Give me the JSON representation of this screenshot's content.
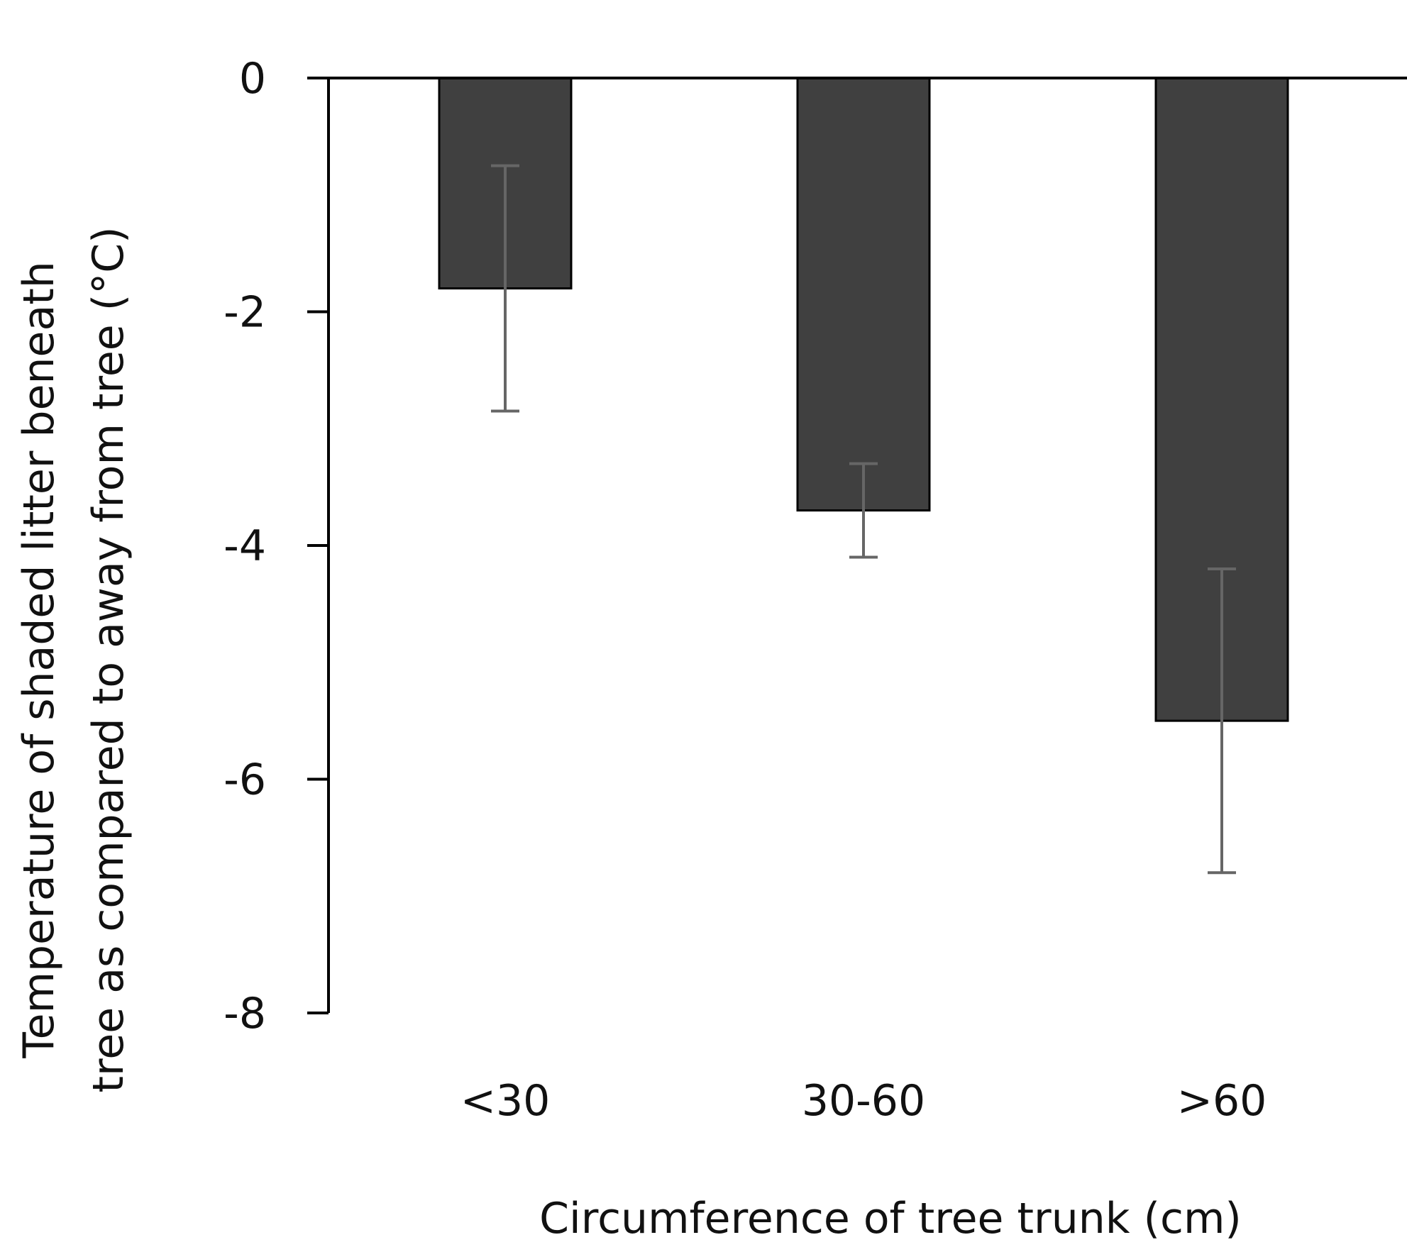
{
  "chart_data": {
    "type": "bar",
    "title": "",
    "categories": [
      "<30",
      "30-60",
      ">60"
    ],
    "values": [
      -1.8,
      -3.7,
      -5.5
    ],
    "error": [
      1.05,
      0.4,
      1.3
    ],
    "xlabel": "Circumference of tree trunk (cm)",
    "ylabel_lines": [
      "Temperature of shaded litter beneath",
      "tree as compared to away from tree (°C)"
    ],
    "ylim": [
      -8,
      0
    ],
    "yticks": [
      0,
      -2,
      -4,
      -6,
      -8
    ],
    "ytick_labels": [
      "0",
      "-2",
      "-4",
      "-6",
      "-8"
    ],
    "grid": false,
    "legend": "none",
    "colors": {
      "bar_fill": "#404040",
      "bar_stroke": "#000000",
      "error_bar": "#666666",
      "axis": "#000000"
    }
  }
}
